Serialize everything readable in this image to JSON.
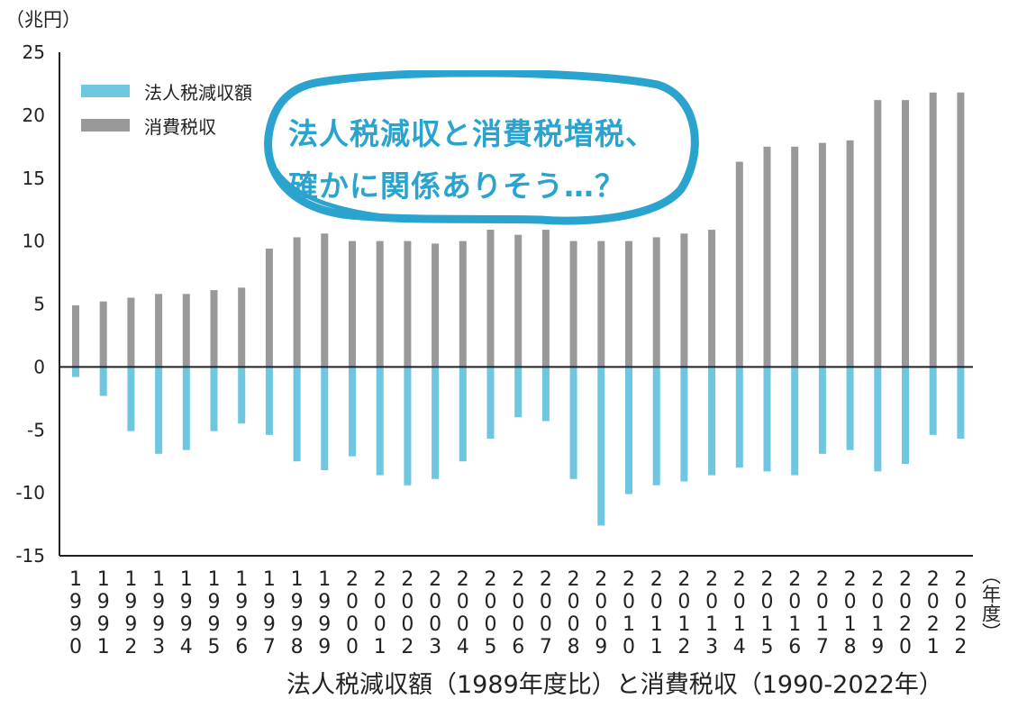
{
  "chart_data": {
    "type": "bar",
    "unit_label": "（兆円）",
    "year_unit_label": "（年度）",
    "caption": "法人税減収額（1989年度比）と消費税収（1990-2022年）",
    "ylim": [
      -15,
      25
    ],
    "yticks": [
      "25",
      "20",
      "15",
      "10",
      "5",
      "0",
      "-5",
      "-10",
      "-15"
    ],
    "categories": [
      "1990",
      "1991",
      "1992",
      "1993",
      "1994",
      "1995",
      "1996",
      "1997",
      "1998",
      "1999",
      "2000",
      "2001",
      "2002",
      "2003",
      "2004",
      "2005",
      "2006",
      "2007",
      "2008",
      "2009",
      "2010",
      "2011",
      "2012",
      "2013",
      "2014",
      "2015",
      "2016",
      "2017",
      "2018",
      "2019",
      "2020",
      "2021",
      "2022"
    ],
    "series": [
      {
        "name": "法人税減収額",
        "color": "#6ec6e0",
        "values": [
          -0.8,
          -2.3,
          -5.1,
          -6.9,
          -6.6,
          -5.1,
          -4.5,
          -5.4,
          -7.5,
          -8.2,
          -7.1,
          -8.6,
          -9.4,
          -8.9,
          -7.5,
          -5.7,
          -4.0,
          -4.3,
          -8.9,
          -12.6,
          -10.1,
          -9.4,
          -9.1,
          -8.6,
          -8.0,
          -8.3,
          -8.6,
          -6.9,
          -6.6,
          -8.3,
          -7.7,
          -5.4,
          -5.7
        ]
      },
      {
        "name": "消費税収",
        "color": "#999999",
        "values": [
          4.9,
          5.2,
          5.5,
          5.8,
          5.8,
          6.1,
          6.3,
          9.4,
          10.3,
          10.6,
          10.0,
          10.0,
          10.0,
          9.8,
          10.0,
          10.9,
          10.5,
          10.9,
          10.0,
          10.0,
          10.0,
          10.3,
          10.6,
          10.9,
          16.3,
          17.5,
          17.5,
          17.8,
          18.0,
          21.2,
          21.2,
          21.8,
          21.8
        ]
      }
    ],
    "callout": {
      "line1": "法人税減収と消費税増税、",
      "line2": "確かに関係ありそう…？"
    },
    "grid": false,
    "legend": "top-left"
  }
}
